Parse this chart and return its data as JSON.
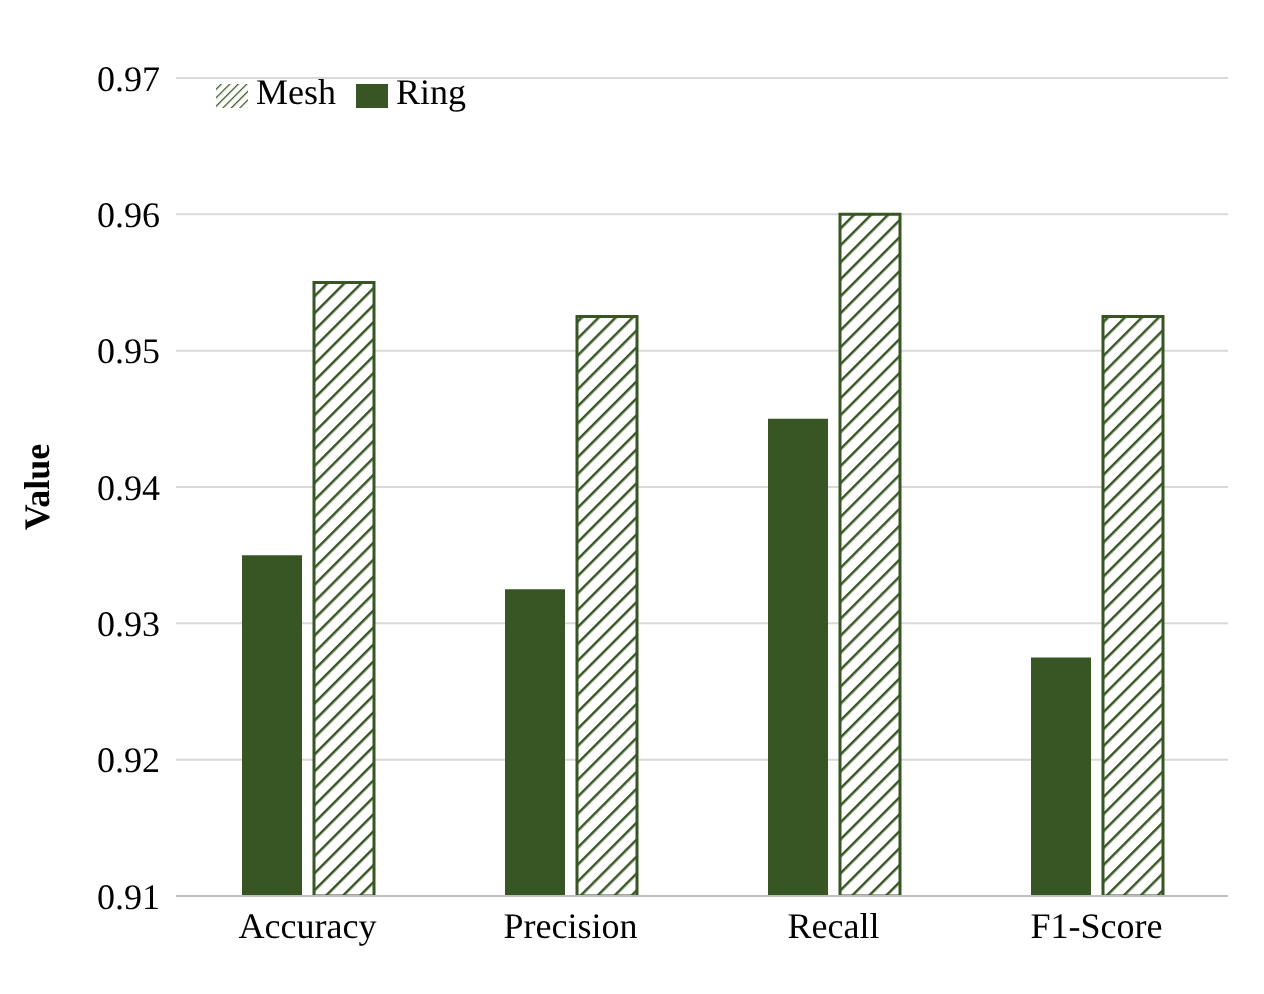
{
  "chart_data": {
    "type": "bar",
    "ylabel": "Value",
    "categories": [
      "Accuracy",
      "Precision",
      "Recall",
      "F1-Score"
    ],
    "series": [
      {
        "name": "Ring",
        "color": "#375623",
        "values": [
          0.935,
          0.9325,
          0.945,
          0.9275
        ]
      },
      {
        "name": "Mesh",
        "color": "#375623",
        "values": [
          0.955,
          0.9525,
          0.96,
          0.9525
        ]
      }
    ],
    "ylim": [
      0.91,
      0.97
    ],
    "yticks": [
      0.91,
      0.92,
      0.93,
      0.94,
      0.95,
      0.96,
      0.97
    ],
    "grid": "y",
    "legend": "top left"
  }
}
